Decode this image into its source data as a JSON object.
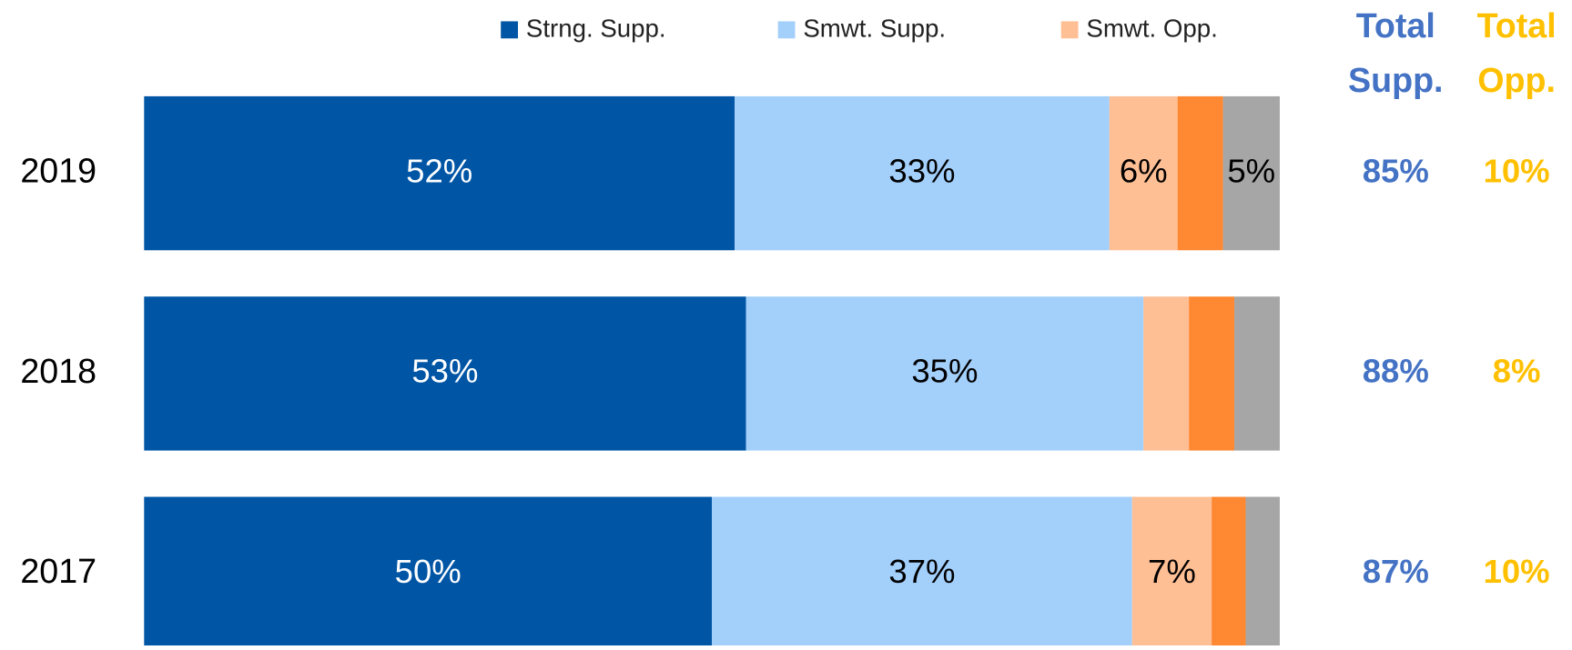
{
  "chart_data": {
    "type": "stacked-bar-horizontal",
    "categories": [
      "2019",
      "2018",
      "2017"
    ],
    "xlim": [
      0,
      100
    ],
    "legend": "top",
    "series": [
      {
        "name": "Strng. Supp.",
        "color": "#0055a5",
        "values": [
          52,
          53,
          50
        ],
        "value_labels": [
          "52%",
          "53%",
          "50%"
        ]
      },
      {
        "name": "Smwt. Supp.",
        "color": "#a3cffb",
        "values": [
          33,
          35,
          37
        ],
        "value_labels": [
          "33%",
          "35%",
          "37%"
        ]
      },
      {
        "name": "Smwt. Opp.",
        "color": "#ffbf94",
        "values": [
          6,
          4,
          7
        ],
        "value_labels": [
          "6%",
          null,
          "7%"
        ]
      },
      {
        "color": "#ff8833",
        "values": [
          4,
          4,
          3
        ],
        "value_labels": [
          null,
          null,
          null
        ]
      },
      {
        "color": "#a6a6a6",
        "values": [
          5,
          4,
          3
        ],
        "value_labels": [
          "5%",
          null,
          null
        ]
      }
    ],
    "totals": [
      {
        "header": [
          "Total",
          "Supp."
        ],
        "color": "#4472c4",
        "values": [
          85,
          88,
          87
        ],
        "value_labels": [
          "85%",
          "88%",
          "87%"
        ]
      },
      {
        "header": [
          "Total",
          "Opp."
        ],
        "color": "#ffc000",
        "values": [
          10,
          8,
          10
        ],
        "value_labels": [
          "10%",
          "8%",
          "10%"
        ]
      }
    ]
  }
}
